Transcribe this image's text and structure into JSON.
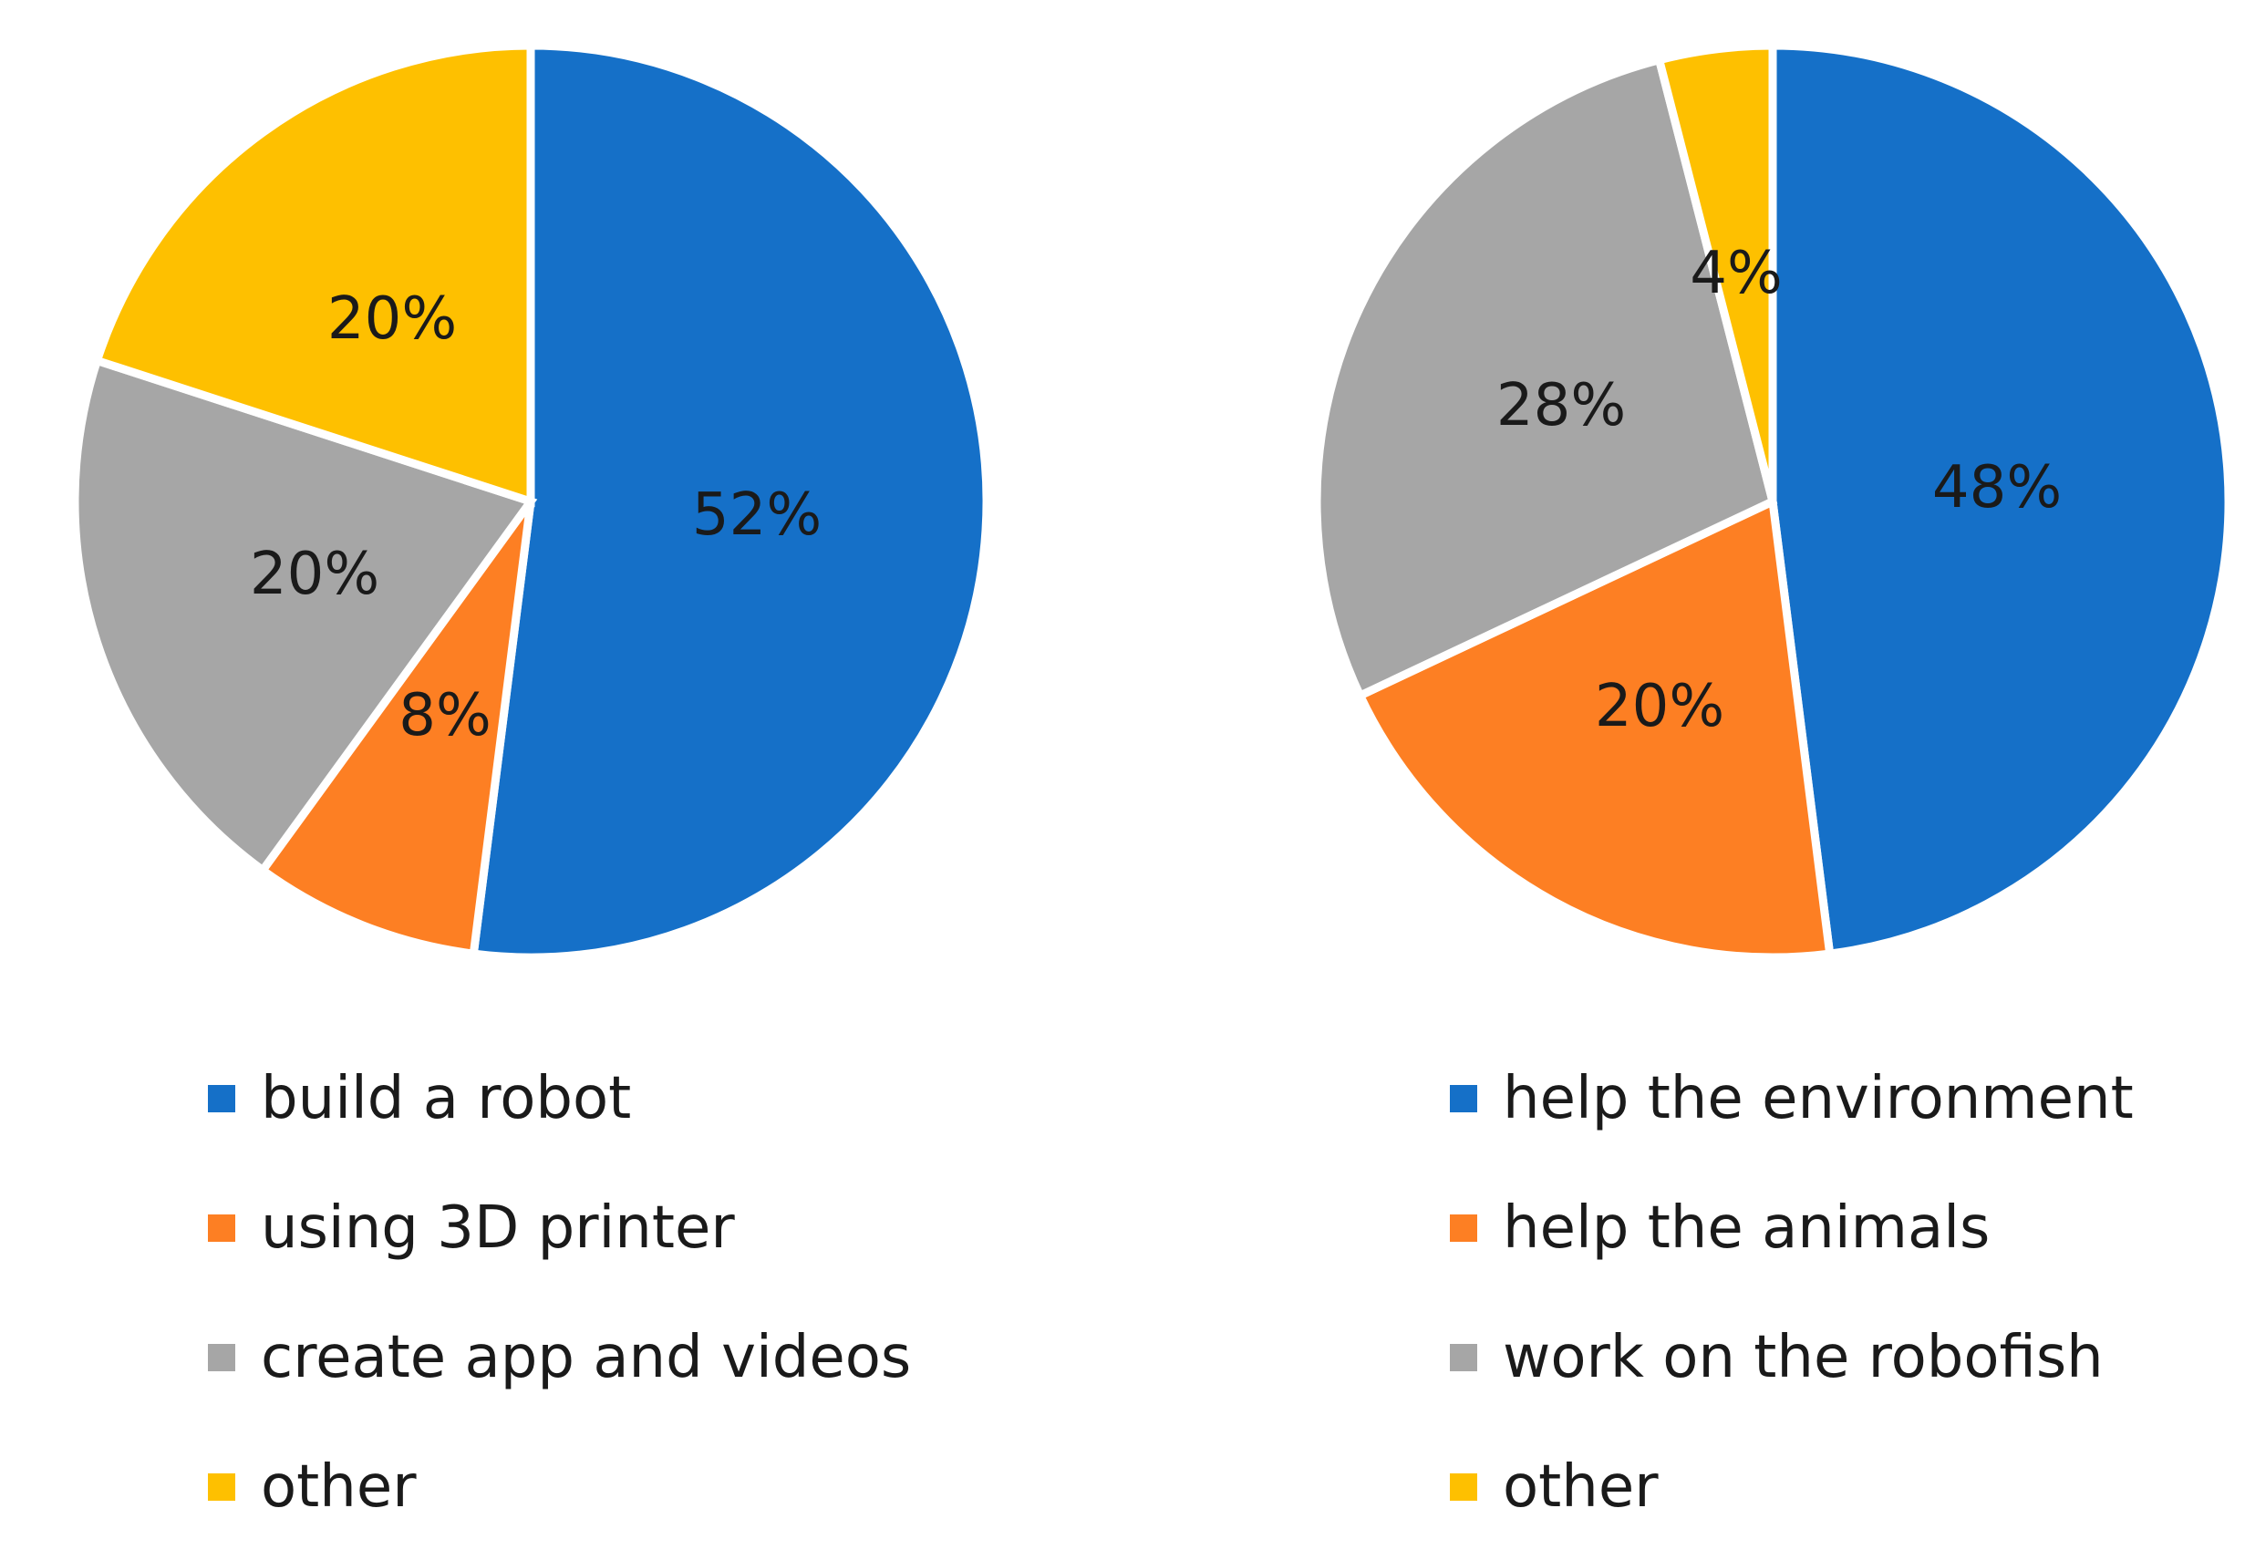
{
  "chart_data": [
    {
      "type": "pie",
      "title": "",
      "categories": [
        "build a robot",
        "using 3D printer",
        "create app and videos",
        "other"
      ],
      "values": [
        52,
        8,
        20,
        20
      ],
      "labels": [
        "52%",
        "8%",
        "20%",
        "20%"
      ],
      "colors": [
        "#1570c8",
        "#fd7f23",
        "#a6a6a6",
        "#fec000"
      ],
      "start": "12 o'clock, clockwise",
      "legend_position": "bottom"
    },
    {
      "type": "pie",
      "title": "",
      "categories": [
        "help the environment",
        "help the animals",
        "work on the robofish",
        "other"
      ],
      "values": [
        48,
        20,
        28,
        4
      ],
      "labels": [
        "48%",
        "20%",
        "28%",
        "4%"
      ],
      "colors": [
        "#1570c8",
        "#fd7f23",
        "#a6a6a6",
        "#fec000"
      ],
      "start": "12 o'clock, clockwise",
      "legend_position": "bottom"
    }
  ]
}
